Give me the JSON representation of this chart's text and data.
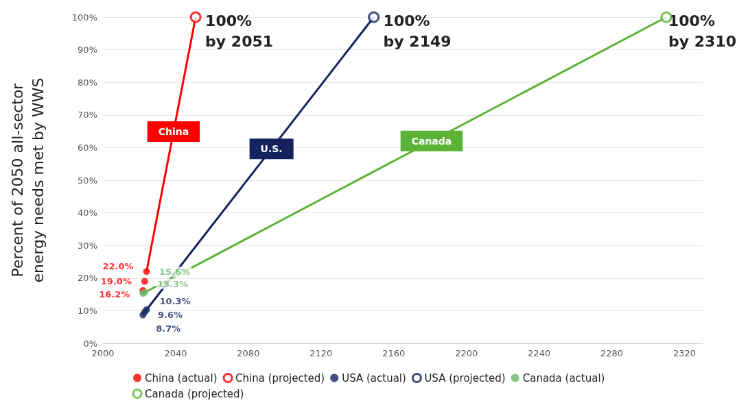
{
  "chart_data": {
    "type": "scatter",
    "ylabel": "Percent of 2050 all-sector\nenergy needs met by WWS",
    "xlim": [
      2000,
      2330
    ],
    "xticks": [
      2000,
      2040,
      2080,
      2120,
      2160,
      2200,
      2240,
      2280,
      2320
    ],
    "ylim": [
      0,
      100
    ],
    "yticks": [
      {
        "value": 0,
        "label": "0%"
      },
      {
        "value": 10,
        "label": "10%"
      },
      {
        "value": 20,
        "label": "20%"
      },
      {
        "value": 30,
        "label": "30%"
      },
      {
        "value": 40,
        "label": "40%"
      },
      {
        "value": 50,
        "label": "50%"
      },
      {
        "value": 60,
        "label": "60%"
      },
      {
        "value": 70,
        "label": "70%"
      },
      {
        "value": 80,
        "label": "80%"
      },
      {
        "value": 90,
        "label": "90%"
      },
      {
        "value": 100,
        "label": "100%"
      }
    ],
    "grid": "y",
    "legend": "bottom",
    "marker": "circle",
    "series": [
      {
        "name": "China",
        "type": "line",
        "marker": "none",
        "color": "#ff0000",
        "x": [
          2024,
          2051
        ],
        "values": [
          22.0,
          100
        ]
      },
      {
        "name": "U.S.",
        "type": "line",
        "marker": "none",
        "color": "#14235e",
        "x": [
          2024,
          2149
        ],
        "values": [
          10.3,
          100
        ]
      },
      {
        "name": "Canada",
        "type": "line",
        "marker": "none",
        "color": "#5cb335",
        "x": [
          2023,
          2310
        ],
        "values": [
          15.6,
          100
        ]
      },
      {
        "name": "China (actual)",
        "color": "#ff0000",
        "x": [
          2022,
          2023,
          2024
        ],
        "values": [
          16.2,
          19.0,
          22.0
        ],
        "value_labels": [
          "16.2%",
          "19.0%",
          "22.0%"
        ]
      },
      {
        "name": "China (projected)",
        "color": "#ff0000",
        "x": [
          2051
        ],
        "values": [
          100
        ]
      },
      {
        "name": "USA (actual)",
        "color": "#14235e",
        "x": [
          2022,
          2023,
          2024
        ],
        "values": [
          8.7,
          9.6,
          10.3
        ],
        "value_labels": [
          "8.7%",
          "9.6%",
          "10.3%"
        ]
      },
      {
        "name": "USA (projected)",
        "color": "#14235e",
        "x": [
          2149
        ],
        "values": [
          100
        ]
      },
      {
        "name": "Canada (actual)",
        "color": "#6db86a",
        "x": [
          2022,
          2023
        ],
        "values": [
          15.3,
          15.6
        ],
        "value_labels": [
          "15.3%",
          "15.6%"
        ]
      },
      {
        "name": "Canada (projected)",
        "color": "#5cb335",
        "x": [
          2310
        ],
        "values": [
          100
        ]
      }
    ],
    "annotations": [
      {
        "text": "100%\nby 2051",
        "x": 2051,
        "y": 100
      },
      {
        "text": "100%\nby 2149",
        "x": 2149,
        "y": 100
      },
      {
        "text": "100%\nby 2310",
        "x": 2310,
        "y": 100
      }
    ]
  }
}
